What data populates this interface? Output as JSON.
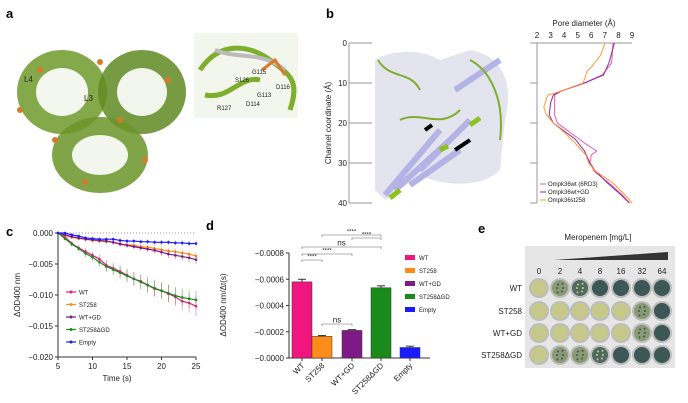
{
  "panels": {
    "a": "a",
    "b": "b",
    "c": "c",
    "d": "d",
    "e": "e"
  },
  "panel_a": {
    "loop_labels": [
      "L4",
      "L3"
    ],
    "inset_labels": [
      "G115",
      "S126",
      "D116",
      "G113",
      "R127",
      "D114"
    ]
  },
  "colors": {
    "WT": "#f0157f",
    "ST258": "#ff8c1a",
    "WT+GD": "#7e1a86",
    "ST258ΔGD": "#1a8a1a",
    "Empty": "#1a1aff",
    "protein": "#6f9a2a",
    "helix": "#b3b3e6",
    "clear": "#c7c98a",
    "dark": "#3d5656",
    "plate": "#e6e6e6"
  },
  "chart_data": [
    {
      "type": "line",
      "panel": "b",
      "title": "",
      "xlabel": "Pore diameter (Å)",
      "ylabel": "Channel coordinate (Å)",
      "xlim": [
        2,
        9
      ],
      "ylim": [
        0,
        40
      ],
      "xticks": [
        "2",
        "3",
        "4",
        "5",
        "6",
        "7",
        "8",
        "9"
      ],
      "yticks": [
        "0",
        "10",
        "20",
        "30",
        "40"
      ],
      "legend_placement": "bottom-left",
      "series": [
        {
          "name": "Ompk36wt (6RD3)",
          "color": "#ee55aa",
          "y": [
            0,
            5,
            8,
            10,
            12,
            13,
            15,
            18,
            20,
            22,
            25,
            27,
            28,
            30,
            32,
            35,
            38,
            40
          ],
          "x": [
            7.6,
            7.5,
            6.8,
            5.5,
            3.8,
            3.3,
            3.3,
            3.3,
            3.5,
            4.3,
            5.5,
            6.4,
            6.0,
            5.9,
            6.2,
            7.3,
            8.3,
            8.8
          ]
        },
        {
          "name": "Ompk36wt+GD",
          "color": "#8a2a9a",
          "y": [
            0,
            5,
            8,
            10,
            12,
            13,
            15,
            18,
            20,
            22,
            24,
            27,
            30,
            32,
            35,
            38,
            40
          ],
          "x": [
            7.7,
            7.3,
            6.9,
            5.5,
            3.8,
            3.2,
            3.0,
            2.9,
            3.2,
            4.0,
            4.8,
            5.5,
            5.9,
            6.3,
            7.2,
            8.2,
            8.8
          ]
        },
        {
          "name": "Ompk36st258",
          "color": "#ff9a33",
          "y": [
            0,
            3,
            6,
            7,
            10,
            12,
            13,
            16,
            18,
            20,
            22,
            25,
            28,
            30,
            32,
            35,
            38,
            40
          ],
          "x": [
            7.0,
            6.7,
            6.0,
            5.7,
            5.4,
            3.8,
            2.8,
            2.5,
            2.7,
            3.2,
            3.9,
            4.8,
            5.6,
            5.8,
            6.3,
            7.6,
            8.5,
            9.0
          ]
        }
      ]
    },
    {
      "type": "line",
      "panel": "c",
      "xlabel": "Time (s)",
      "ylabel": "ΔOD400 nm",
      "xlim": [
        5,
        25
      ],
      "ylim": [
        -0.02,
        0
      ],
      "xticks": [
        "5",
        "10",
        "15",
        "20",
        "25"
      ],
      "yticks": [
        "0.000",
        "−0.005",
        "−0.010",
        "−0.015",
        "−0.020"
      ],
      "legend_placement": "bottom-left",
      "x": [
        5,
        6,
        7,
        8,
        9,
        10,
        11,
        12,
        13,
        14,
        15,
        16,
        17,
        18,
        19,
        20,
        21,
        22,
        23,
        24,
        25
      ],
      "series": [
        {
          "name": "WT",
          "color": "#f0157f",
          "values": [
            0,
            -0.0006,
            -0.0017,
            -0.0024,
            -0.003,
            -0.0036,
            -0.0042,
            -0.0052,
            -0.0057,
            -0.0062,
            -0.0068,
            -0.0074,
            -0.0078,
            -0.0084,
            -0.009,
            -0.0093,
            -0.0098,
            -0.0103,
            -0.011,
            -0.0113,
            -0.0118
          ]
        },
        {
          "name": "ST258",
          "color": "#ff8c1a",
          "values": [
            0,
            -0.0004,
            -0.0007,
            -0.0009,
            -0.001,
            -0.0012,
            -0.0013,
            -0.0014,
            -0.0015,
            -0.0017,
            -0.0019,
            -0.002,
            -0.0022,
            -0.0023,
            -0.0025,
            -0.0027,
            -0.0029,
            -0.003,
            -0.0032,
            -0.0034,
            -0.0037
          ]
        },
        {
          "name": "WT+GD",
          "color": "#7e1a86",
          "values": [
            0,
            -0.0003,
            -0.0006,
            -0.0008,
            -0.001,
            -0.0011,
            -0.0012,
            -0.0013,
            -0.0015,
            -0.0018,
            -0.002,
            -0.0022,
            -0.0024,
            -0.0026,
            -0.0028,
            -0.0031,
            -0.0034,
            -0.0036,
            -0.0038,
            -0.004,
            -0.0043
          ]
        },
        {
          "name": "ST258ΔGD",
          "color": "#1a8a1a",
          "values": [
            0,
            -0.0009,
            -0.0018,
            -0.0025,
            -0.0033,
            -0.0039,
            -0.0047,
            -0.0054,
            -0.0059,
            -0.0064,
            -0.0069,
            -0.0074,
            -0.0079,
            -0.0084,
            -0.0089,
            -0.0093,
            -0.0097,
            -0.0101,
            -0.0104,
            -0.0106,
            -0.0108
          ]
        },
        {
          "name": "Empty",
          "color": "#1a1aff",
          "values": [
            0,
            0,
            -0.0003,
            -0.0005,
            -0.0008,
            -0.0009,
            -0.001,
            -0.001,
            -0.001,
            -0.0012,
            -0.0013,
            -0.0013,
            -0.0014,
            -0.0014,
            -0.0015,
            -0.0015,
            -0.0015,
            -0.0016,
            -0.0016,
            -0.0017,
            -0.0017
          ]
        }
      ]
    },
    {
      "type": "bar",
      "panel": "d",
      "ylabel": "ΔOD400 nm/Δt(s)",
      "ylim": [
        0,
        -0.0008
      ],
      "yticks": [
        "−0.0000",
        "−0.0002",
        "−0.0004",
        "−0.0006",
        "−0.0008"
      ],
      "categories": [
        "WT",
        "ST258",
        "WT+GD",
        "ST258ΔGD",
        "Empty"
      ],
      "values": [
        -0.00058,
        -0.000165,
        -0.00021,
        -0.000535,
        -8e-05
      ],
      "errors": [
        2e-05,
        6e-06,
        6e-06,
        1.5e-05,
        1e-05
      ],
      "colors": [
        "#f0157f",
        "#ff8c1a",
        "#7e1a86",
        "#1a8a1a",
        "#1a1aff"
      ],
      "legend_placement": "right",
      "comparisons": [
        {
          "a": 1,
          "b": 3,
          "label": "****"
        },
        {
          "a": 2,
          "b": 3,
          "label": "****"
        },
        {
          "a": 0,
          "b": 3,
          "label": "ns"
        },
        {
          "a": 0,
          "b": 2,
          "label": "****"
        },
        {
          "a": 0,
          "b": 1,
          "label": "****"
        },
        {
          "a": 1,
          "b": 2,
          "label": "ns"
        }
      ]
    },
    {
      "type": "table",
      "panel": "e",
      "title": "Meropenem [mg/L]",
      "columns": [
        "0",
        "2",
        "4",
        "8",
        "16",
        "32",
        "64"
      ],
      "rows": [
        {
          "label": "WT",
          "growth": [
            "clear",
            "partial",
            "mostly",
            "dark",
            "dark",
            "dark",
            "dark"
          ]
        },
        {
          "label": "ST258",
          "growth": [
            "clear",
            "clear",
            "clear",
            "clear",
            "clear",
            "partial",
            "dark"
          ]
        },
        {
          "label": "WT+GD",
          "growth": [
            "clear",
            "clear",
            "clear",
            "clear",
            "clear",
            "partial",
            "dark"
          ]
        },
        {
          "label": "ST258ΔGD",
          "growth": [
            "clear",
            "partial",
            "partial",
            "mostly",
            "dark",
            "dark",
            "dark"
          ]
        }
      ]
    }
  ]
}
